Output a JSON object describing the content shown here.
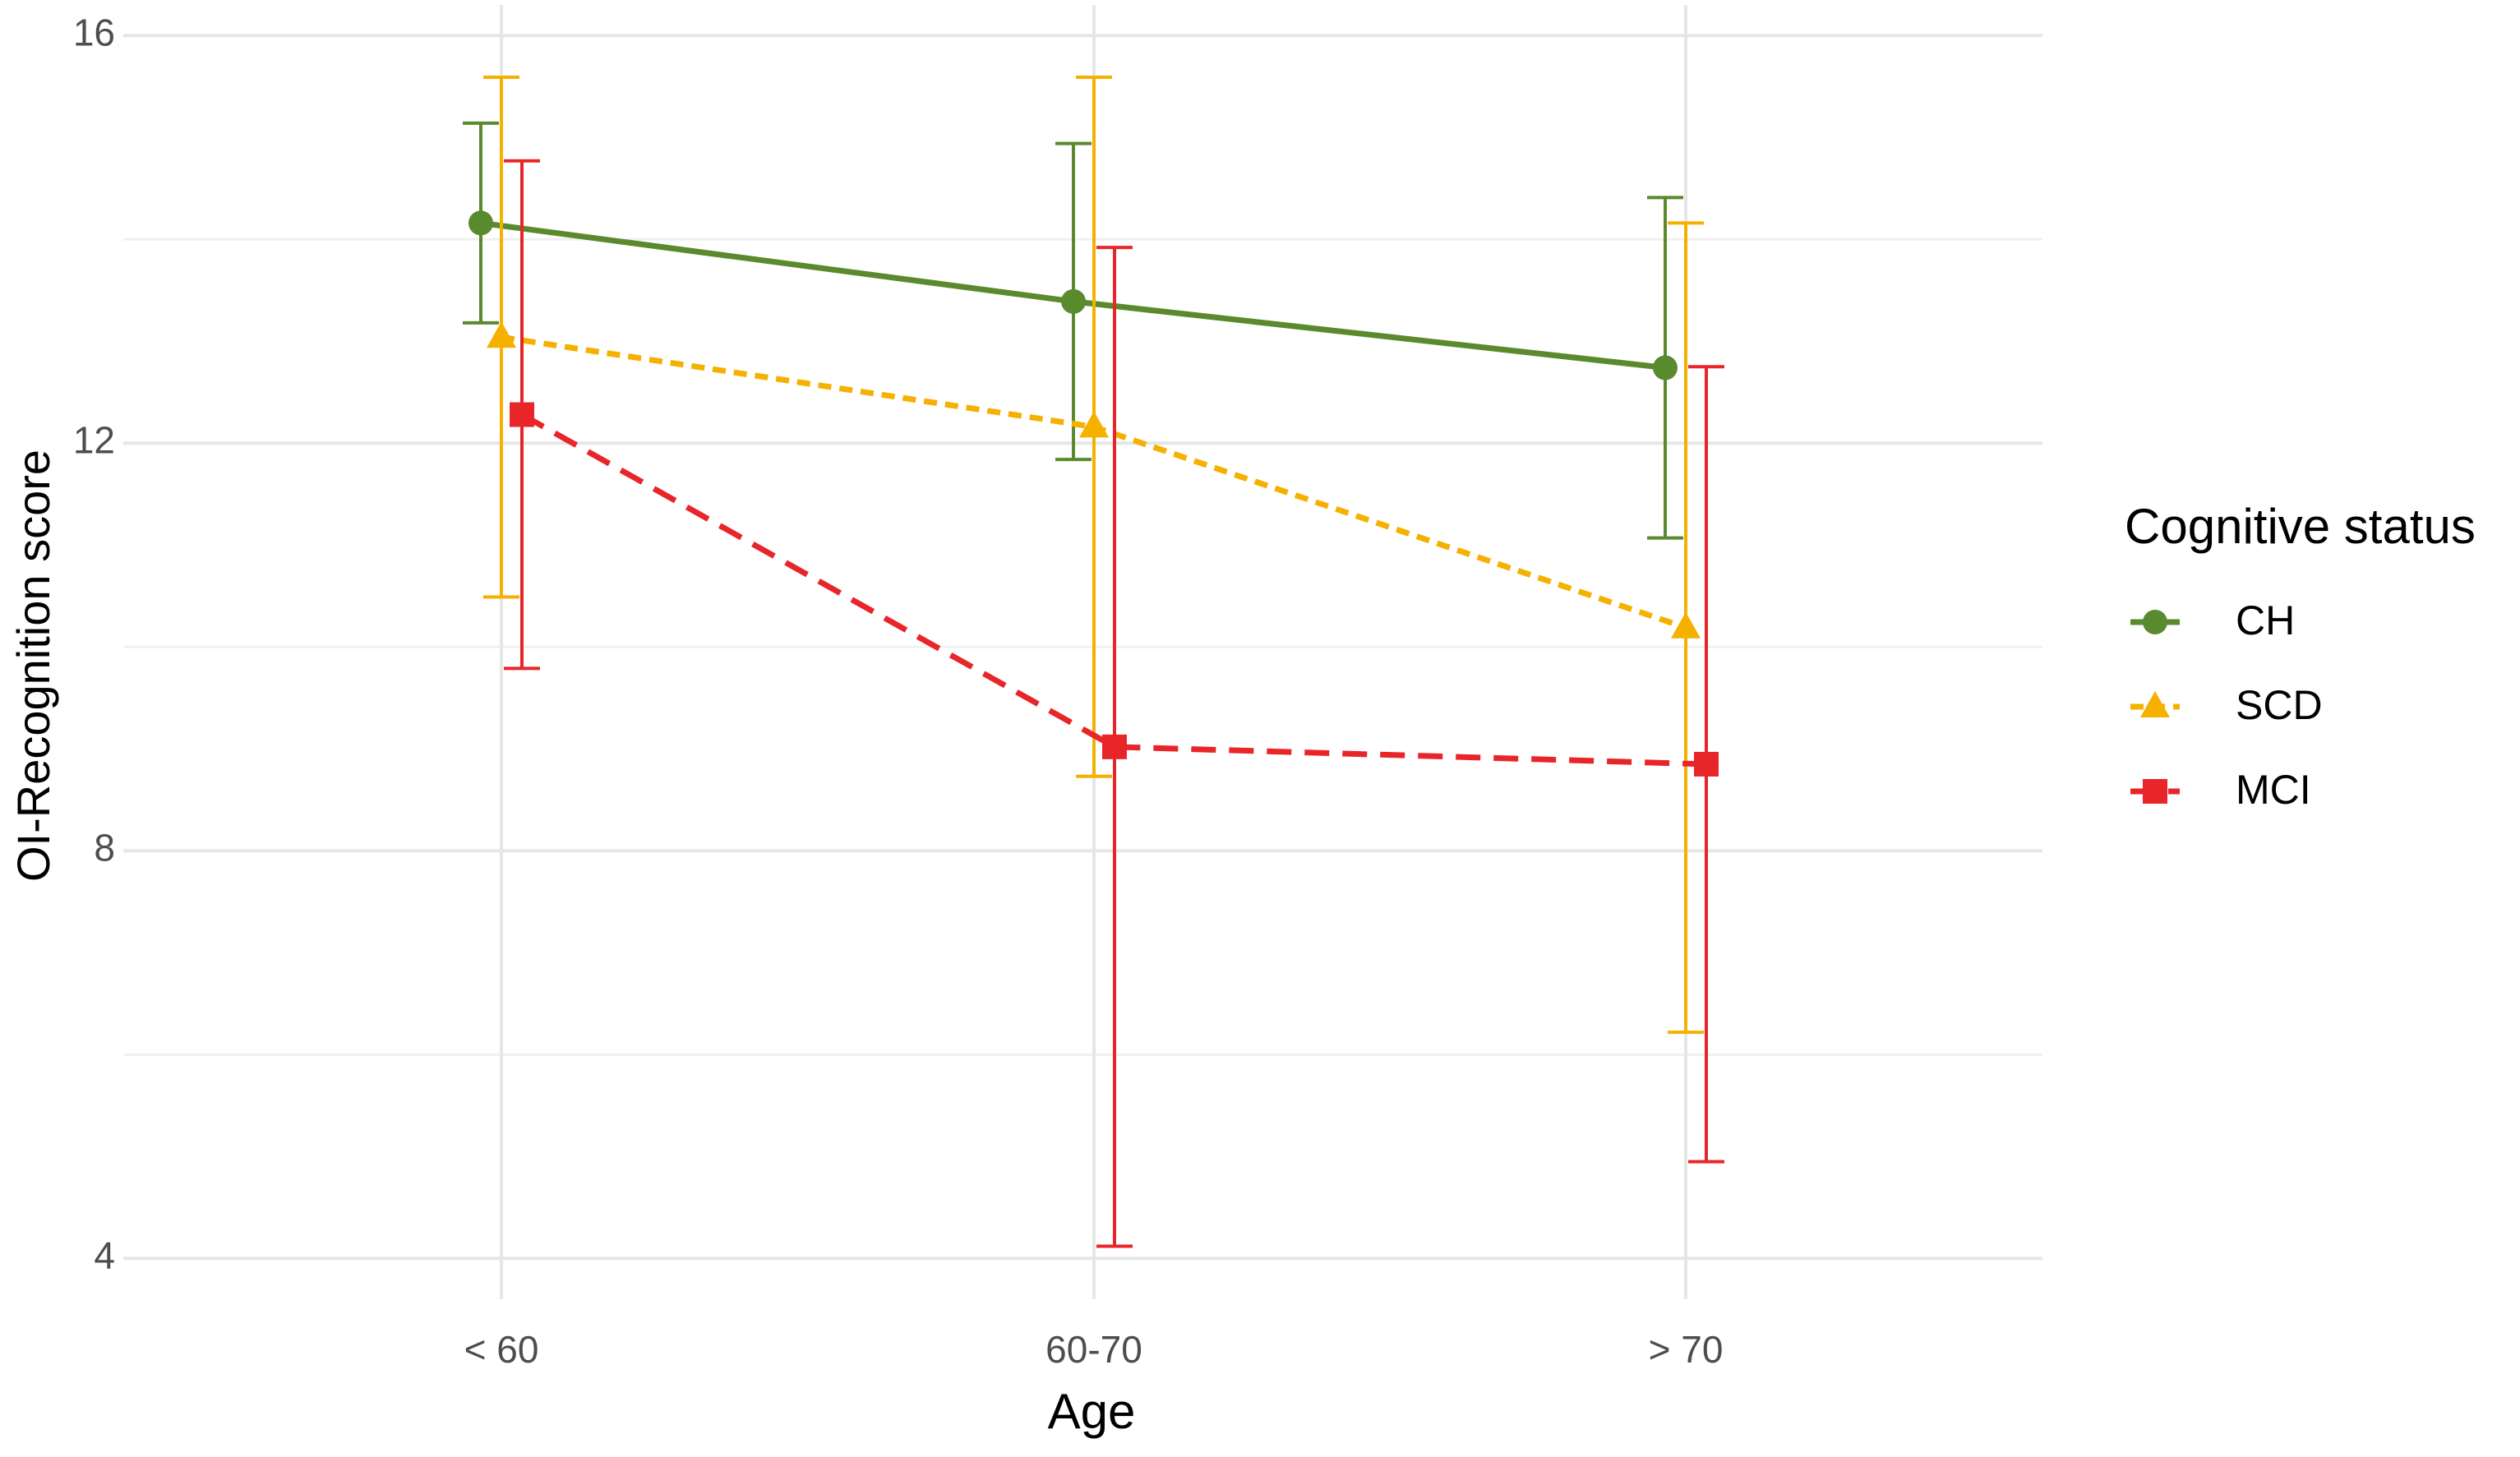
{
  "chart_data": {
    "type": "line",
    "x_label": "Age",
    "y_label": "OI-Recognition score",
    "categories": [
      "< 60",
      "60-70",
      "> 70"
    ],
    "ylim": [
      3.6,
      16.3
    ],
    "yticks": [
      4,
      8,
      12,
      16
    ],
    "y_minor_grid": [
      6,
      10,
      14
    ],
    "grid": true,
    "legend_title": "Cognitive status",
    "legend_position": "right",
    "series": [
      {
        "name": "CH",
        "color": "#5a8a2e",
        "marker": "circle",
        "dash": "solid",
        "values": [
          14.16,
          13.39,
          12.74
        ],
        "errors": [
          0.98,
          1.55,
          1.67
        ]
      },
      {
        "name": "SCD",
        "color": "#f5b000",
        "marker": "triangle",
        "dash": "dotted",
        "values": [
          13.04,
          12.16,
          10.19
        ],
        "errors": [
          2.55,
          3.43,
          3.97
        ]
      },
      {
        "name": "MCI",
        "color": "#e8262a",
        "marker": "square",
        "dash": "dashed",
        "values": [
          12.28,
          9.02,
          8.85
        ],
        "errors": [
          2.49,
          4.9,
          3.9
        ]
      }
    ]
  }
}
